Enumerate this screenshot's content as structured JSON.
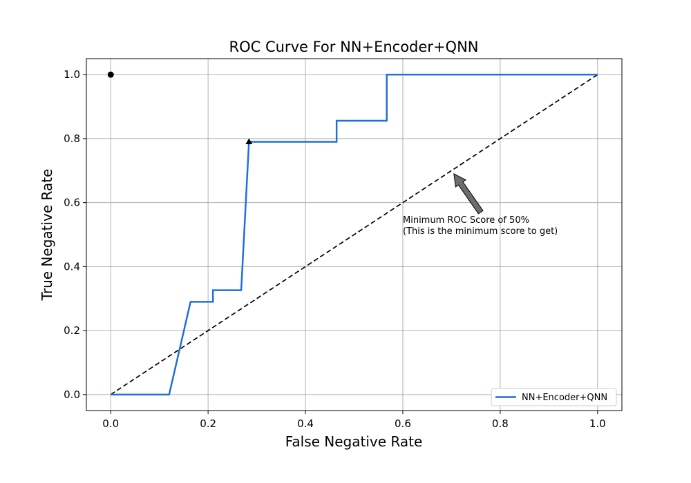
{
  "chart_data": {
    "type": "line",
    "title": "ROC Curve For NN+Encoder+QNN",
    "xlabel": "False Negative Rate",
    "ylabel": "True Negative Rate",
    "xlim": [
      -0.05,
      1.05
    ],
    "ylim": [
      -0.05,
      1.05
    ],
    "xticks": [
      "0.0",
      "0.2",
      "0.4",
      "0.6",
      "0.8",
      "1.0"
    ],
    "yticks": [
      "0.0",
      "0.2",
      "0.4",
      "0.6",
      "0.8",
      "1.0"
    ],
    "grid": true,
    "legend_position": "lower-right",
    "series": [
      {
        "name": "NN+Encoder+QNN",
        "color": "#1f6fe0",
        "x": [
          0.0,
          0.12,
          0.164,
          0.21,
          0.21,
          0.268,
          0.284,
          0.464,
          0.464,
          0.567,
          0.567,
          1.0
        ],
        "y": [
          0.0,
          0.0,
          0.29,
          0.29,
          0.326,
          0.326,
          0.79,
          0.79,
          0.856,
          0.856,
          1.0,
          1.0
        ]
      }
    ],
    "reference_line": {
      "x": [
        0.0,
        1.0
      ],
      "y": [
        0.0,
        1.0
      ],
      "color": "#000000",
      "style": "dashed"
    },
    "points": [
      {
        "marker": "circle",
        "x": 0.0,
        "y": 1.0,
        "color": "#000000"
      },
      {
        "marker": "triangle",
        "x": 0.284,
        "y": 0.79,
        "color": "#000000"
      }
    ],
    "annotation": {
      "lines": [
        "Minimum ROC Score of 50%",
        "(This is the minimum score to get)"
      ],
      "text_x": 0.6,
      "text_y": 0.54,
      "arrow_from_x": 0.76,
      "arrow_from_y": 0.57,
      "arrow_to_x": 0.705,
      "arrow_to_y": 0.69,
      "arrow_color": "#6d6d6d"
    }
  }
}
